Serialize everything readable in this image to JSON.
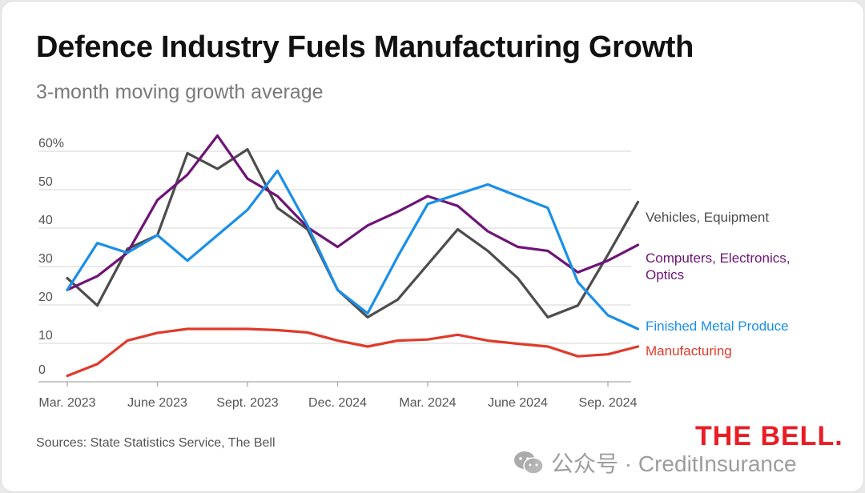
{
  "title": "Defence Industry Fuels Manufacturing Growth",
  "subtitle": "3-month moving growth average",
  "sources": "Sources: State Statistics Service, The Bell",
  "brand": "THE BELL.",
  "watermark": "公众号 · CreditInsurance",
  "chart_data": {
    "type": "line",
    "x": [
      0,
      1,
      2,
      3,
      4,
      5,
      6,
      7,
      8,
      9,
      10,
      11,
      12,
      13,
      14,
      15,
      16,
      17,
      18,
      19
    ],
    "x_ticks": [
      {
        "x": 0,
        "label": "Mar. 2023"
      },
      {
        "x": 3,
        "label": "June 2023"
      },
      {
        "x": 6,
        "label": "Sept. 2023"
      },
      {
        "x": 9,
        "label": "Dec. 2024"
      },
      {
        "x": 12,
        "label": "Mar. 2024"
      },
      {
        "x": 15,
        "label": "June 2024"
      },
      {
        "x": 18,
        "label": "Sep. 2024"
      }
    ],
    "y_ticks": [
      {
        "value": 0,
        "label": "0"
      },
      {
        "value": 10,
        "label": "10"
      },
      {
        "value": 20,
        "label": "20"
      },
      {
        "value": 30,
        "label": "30"
      },
      {
        "value": 40,
        "label": "40"
      },
      {
        "value": 50,
        "label": "50"
      },
      {
        "value": 60,
        "label": "60%"
      }
    ],
    "ylim": [
      -3,
      60
    ],
    "grid": true,
    "legend": "direct labels at right end of lines",
    "series": [
      {
        "name": "Vehicles, Equipment",
        "color": "#4d4d4d",
        "values": [
          22.5,
          15.5,
          30,
          33.5,
          54.5,
          50.5,
          55.5,
          40.5,
          35,
          19.5,
          12.5,
          17,
          26,
          35,
          29.5,
          22.5,
          12.5,
          15.5,
          28.5,
          42
        ]
      },
      {
        "name": "Computers, Electronics, Optics",
        "color": "#6e1477",
        "values": [
          19.5,
          23,
          29,
          42.5,
          49,
          59,
          48,
          43.5,
          35.5,
          30.5,
          36,
          39.5,
          43.5,
          41,
          34.5,
          30.5,
          29.5,
          24,
          27,
          31
        ]
      },
      {
        "name": "Finished Metal Produce",
        "color": "#1a8fe8",
        "values": [
          19.5,
          31.5,
          29,
          33.5,
          27,
          33.5,
          40,
          50,
          36,
          19.5,
          13.5,
          28,
          41.5,
          44,
          46.5,
          43.5,
          40.5,
          21.5,
          13,
          9.5
        ]
      },
      {
        "name": "Manufacturing",
        "color": "#e03a2a",
        "values": [
          -2.5,
          0.5,
          6.5,
          8.5,
          9.5,
          9.5,
          9.5,
          9.2,
          8.6,
          6.5,
          5,
          6.5,
          6.8,
          8,
          6.5,
          5.7,
          5,
          2.5,
          3,
          5
        ]
      }
    ]
  }
}
